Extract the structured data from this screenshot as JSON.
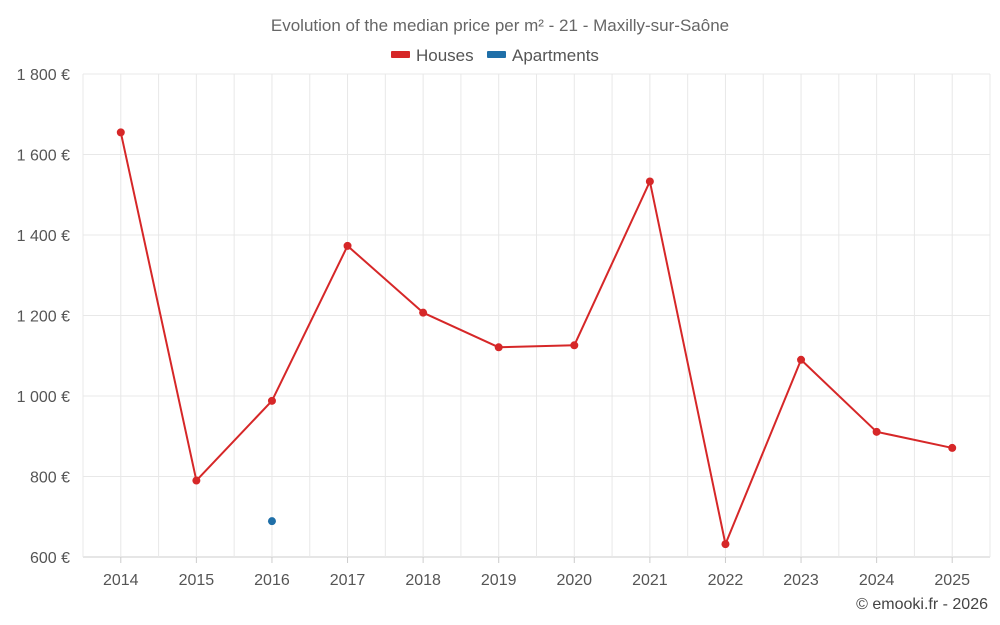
{
  "chart_data": {
    "type": "line",
    "title": "Evolution of the median price per m² - 21 - Maxilly-sur-Saône",
    "categories": [
      "2014",
      "2015",
      "2016",
      "2017",
      "2018",
      "2019",
      "2020",
      "2021",
      "2022",
      "2023",
      "2024",
      "2025"
    ],
    "y_ticks": [
      "600 €",
      "800 €",
      "1 000 €",
      "1 200 €",
      "1 400 €",
      "1 600 €",
      "1 800 €"
    ],
    "y_tick_values": [
      600,
      800,
      1000,
      1200,
      1400,
      1600,
      1800
    ],
    "ylim": [
      600,
      1800
    ],
    "grid": true,
    "legend_position": "top-center",
    "series": [
      {
        "name": "Houses",
        "color": "#d62728",
        "values": [
          1655,
          790,
          988,
          1373,
          1207,
          1121,
          1126,
          1533,
          632,
          1090,
          911,
          871
        ]
      },
      {
        "name": "Apartments",
        "color": "#1f6fa8",
        "values": [
          null,
          null,
          689,
          null,
          null,
          null,
          null,
          null,
          null,
          null,
          null,
          null
        ]
      }
    ]
  },
  "credit": "© emooki.fr - 2026"
}
